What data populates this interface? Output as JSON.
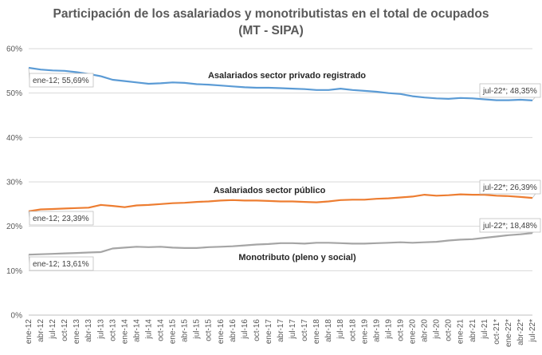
{
  "chart_data": {
    "type": "line",
    "title": "Participación de los asalariados y monotributistas en el total de ocupados",
    "subtitle": "(MT - SIPA)",
    "ylim": [
      0,
      60
    ],
    "yticks": [
      "0%",
      "10%",
      "20%",
      "30%",
      "40%",
      "50%",
      "60%"
    ],
    "ytick_values": [
      0,
      10,
      20,
      30,
      40,
      50,
      60
    ],
    "xtick_labels": [
      "ene-12",
      "abr-12",
      "jul-12",
      "oct-12",
      "ene-13",
      "abr-13",
      "jul-13",
      "oct-13",
      "ene-14",
      "abr-14",
      "jul-14",
      "oct-14",
      "ene-15",
      "abr-15",
      "jul-15",
      "oct-15",
      "ene-16",
      "abr-16",
      "jul-16",
      "oct-16",
      "ene-17",
      "abr-17",
      "jul-17",
      "oct-17",
      "ene-18",
      "abr-18",
      "jul-18",
      "oct-18",
      "ene-19",
      "abr-19",
      "jul-19",
      "oct-19",
      "ene-20",
      "abr-20",
      "jul-20",
      "oct-20",
      "ene-21",
      "abr-21",
      "jul-21",
      "oct-21*",
      "ene-22*",
      "abr-22*",
      "jul-22*"
    ],
    "series": [
      {
        "name": "Asalariados sector privado registrado",
        "color": "#5b9bd5",
        "values": [
          55.69,
          55.3,
          55.1,
          55.0,
          54.7,
          54.3,
          53.8,
          53.0,
          52.7,
          52.4,
          52.1,
          52.2,
          52.4,
          52.3,
          52.0,
          51.9,
          51.7,
          51.5,
          51.3,
          51.2,
          51.2,
          51.1,
          51.0,
          50.9,
          50.7,
          50.7,
          51.0,
          50.7,
          50.5,
          50.3,
          50.0,
          49.8,
          49.3,
          49.0,
          48.8,
          48.7,
          48.9,
          48.8,
          48.6,
          48.4,
          48.4,
          48.5,
          48.35
        ],
        "start_label": "ene-12; 55,69%",
        "end_label": "jul-22*; 48,35%"
      },
      {
        "name": "Asalariados sector público",
        "color": "#ed7d31",
        "values": [
          23.39,
          23.8,
          23.9,
          24.0,
          24.1,
          24.2,
          24.8,
          24.6,
          24.3,
          24.7,
          24.8,
          25.0,
          25.2,
          25.3,
          25.5,
          25.6,
          25.8,
          25.9,
          25.8,
          25.8,
          25.7,
          25.6,
          25.6,
          25.5,
          25.4,
          25.6,
          25.9,
          26.0,
          26.0,
          26.2,
          26.3,
          26.5,
          26.7,
          27.1,
          26.9,
          27.0,
          27.2,
          27.1,
          27.1,
          26.9,
          26.8,
          26.6,
          26.39
        ],
        "start_label": "ene-12; 23,39%",
        "end_label": "jul-22*; 26,39%"
      },
      {
        "name": "Monotributo (pleno y social)",
        "color": "#a5a5a5",
        "values": [
          13.61,
          13.7,
          13.8,
          13.9,
          14.0,
          14.1,
          14.2,
          15.0,
          15.2,
          15.4,
          15.3,
          15.4,
          15.2,
          15.1,
          15.1,
          15.3,
          15.4,
          15.5,
          15.7,
          15.9,
          16.0,
          16.2,
          16.2,
          16.1,
          16.3,
          16.3,
          16.2,
          16.1,
          16.1,
          16.2,
          16.3,
          16.4,
          16.3,
          16.4,
          16.5,
          16.8,
          17.0,
          17.1,
          17.4,
          17.7,
          18.0,
          18.2,
          18.48
        ],
        "start_label": "ene-12; 13,61%",
        "end_label": "jul-22*; 18,48%"
      }
    ]
  }
}
